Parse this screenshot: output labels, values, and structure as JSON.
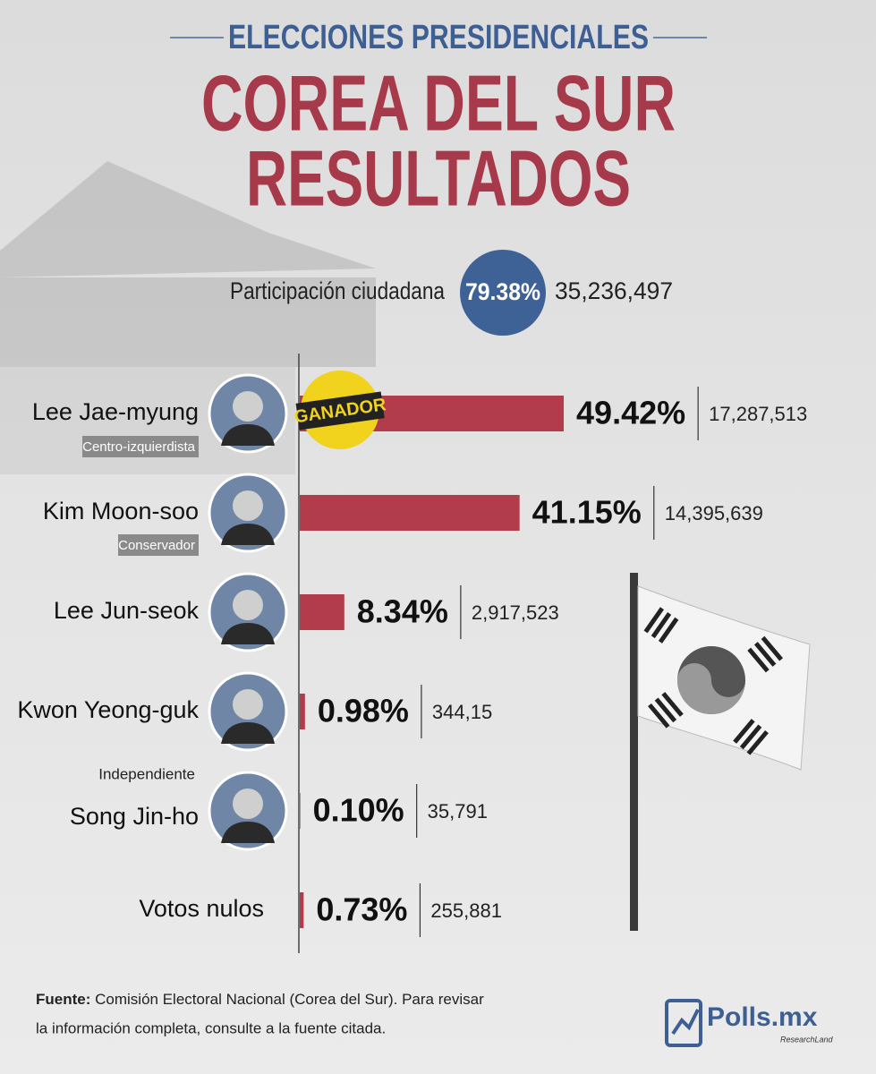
{
  "header": {
    "kicker": "ELECCIONES PRESIDENCIALES",
    "title_line1": "COREA DEL SUR",
    "title_line2": "RESULTADOS"
  },
  "turnout": {
    "label": "Participación ciudadana",
    "value_label": "79.38%",
    "votes": "35,236,497"
  },
  "chart_data": {
    "type": "bar",
    "orientation": "horizontal",
    "categories": [
      "Lee Jae-myung",
      "Kim Moon-soo",
      "Lee Jun-seok",
      "Kwon Yeong-guk",
      "Song Jin-ho",
      "Votos nulos"
    ],
    "values": [
      49.42,
      41.15,
      8.34,
      0.98,
      0.1,
      0.73
    ],
    "value_labels": [
      "49.42%",
      "41.15%",
      "8.34%",
      "0.98%",
      "0.10%",
      "0.73%"
    ],
    "votes": [
      "17,287,513",
      "14,395,639",
      "2,917,523",
      "344,15",
      "35,791",
      "255,881"
    ],
    "color": "#b23c4b",
    "annotations": [
      "Centro-izquierdista",
      "Conservador",
      "Independiente"
    ],
    "badge": "GANADOR"
  },
  "footer": {
    "source_label": "Fuente:",
    "source_text": "Comisión Electoral Nacional (Corea del Sur). Para revisar",
    "source_text2": "la información completa, consulte a la fuente citada.",
    "brand": "Polls.mx",
    "brand_sub": "ResearchLand"
  }
}
